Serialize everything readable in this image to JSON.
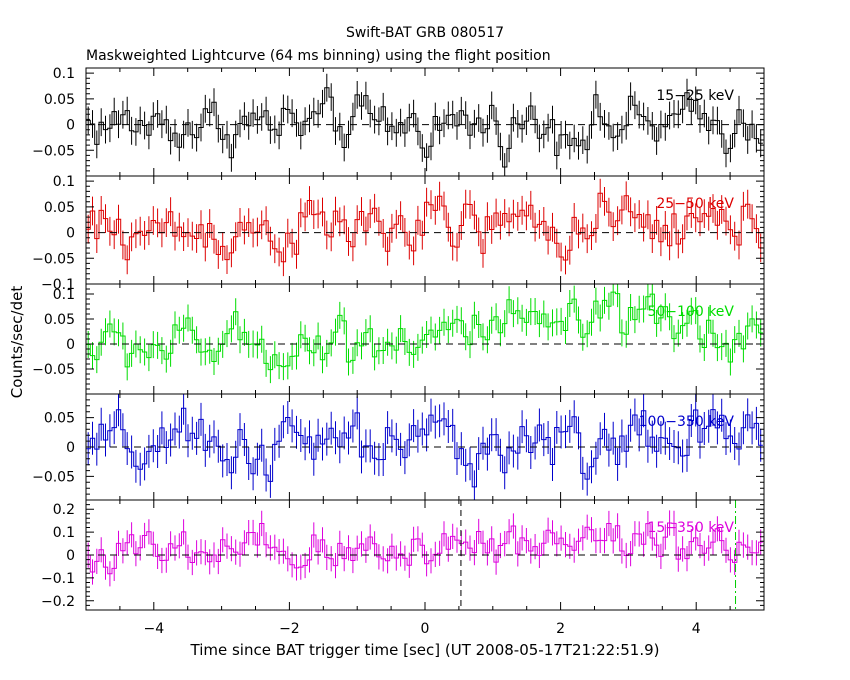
{
  "chart_data": {
    "type": "line",
    "title": "Swift-BAT GRB 080517",
    "subtitle": "Maskweighted Lightcurve (64 ms binning) using the flight position",
    "xlabel": "Time since BAT trigger time [sec] (UT 2008-05-17T21:22:51.9)",
    "ylabel": "Counts/sec/det",
    "xlim": [
      -5,
      5
    ],
    "x_ticks": [
      -4,
      -2,
      0,
      2,
      4
    ],
    "x_tick_labels": [
      "−4",
      "−2",
      "0",
      "2",
      "4"
    ],
    "bin_width_s": 0.064,
    "markers": [
      {
        "x": 0.53,
        "style": "dashed",
        "color": "#000000"
      },
      {
        "x": 4.58,
        "style": "dash-dot",
        "color": "#00cc00"
      }
    ],
    "panels": [
      {
        "band": "15−25 keV",
        "color": "#000000",
        "ylim": [
          -0.1,
          0.11
        ],
        "y_ticks": [
          -0.05,
          0,
          0.05,
          0.1
        ],
        "y_tick_labels": [
          "−0.05",
          "0",
          "0.05",
          "0.1"
        ],
        "noise": 0.028,
        "error": 0.027,
        "trend": [
          [
            -5,
            0.0
          ],
          [
            5,
            0.0
          ]
        ]
      },
      {
        "band": "25−50 keV",
        "color": "#dd0000",
        "ylim": [
          -0.1,
          0.11
        ],
        "y_ticks": [
          -0.1,
          -0.05,
          0,
          0.05,
          0.1
        ],
        "y_tick_labels": [
          "−0.1",
          "−0.05",
          "0",
          "0.05",
          "0.1"
        ],
        "noise": 0.03,
        "error": 0.028,
        "trend": [
          [
            -5,
            0.0
          ],
          [
            -2,
            0.005
          ],
          [
            0,
            0.01
          ],
          [
            2,
            0.01
          ],
          [
            5,
            0.015
          ]
        ]
      },
      {
        "band": "50−100 keV",
        "color": "#00dd00",
        "ylim": [
          -0.1,
          0.12
        ],
        "y_ticks": [
          -0.05,
          0,
          0.05,
          0.1
        ],
        "y_tick_labels": [
          "−0.05",
          "0",
          "0.05",
          "0.1"
        ],
        "noise": 0.028,
        "error": 0.027,
        "trend": [
          [
            -5,
            -0.005
          ],
          [
            -2,
            -0.002
          ],
          [
            0,
            0.02
          ],
          [
            3,
            0.04
          ],
          [
            5,
            0.02
          ]
        ]
      },
      {
        "band": "100−350 keV",
        "color": "#0000cc",
        "ylim": [
          -0.09,
          0.09
        ],
        "y_ticks": [
          -0.05,
          0,
          0.05
        ],
        "y_tick_labels": [
          "−0.05",
          "0",
          "0.05"
        ],
        "noise": 0.028,
        "error": 0.028,
        "trend": [
          [
            -5,
            -0.005
          ],
          [
            0,
            0.005
          ],
          [
            5,
            0.01
          ]
        ]
      },
      {
        "band": "15−350 keV",
        "color": "#dd00dd",
        "ylim": [
          -0.24,
          0.24
        ],
        "y_ticks": [
          -0.2,
          -0.1,
          0,
          0.1,
          0.2
        ],
        "y_tick_labels": [
          "−0.2",
          "−0.1",
          "0",
          "0.1",
          "0.2"
        ],
        "noise": 0.055,
        "error": 0.055,
        "trend": [
          [
            -5,
            0.0
          ],
          [
            -1,
            0.0
          ],
          [
            0,
            0.05
          ],
          [
            3,
            0.08
          ],
          [
            5,
            0.05
          ]
        ]
      }
    ]
  }
}
